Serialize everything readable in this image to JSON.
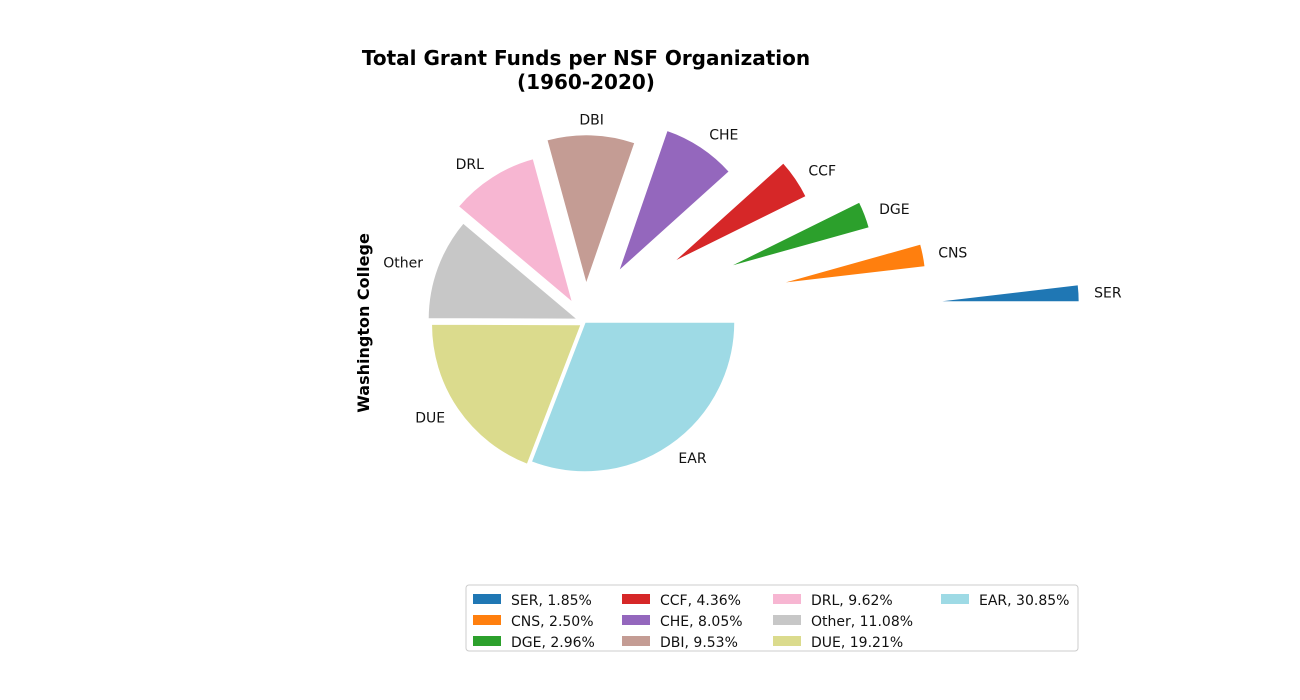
{
  "chart_data": {
    "type": "pie",
    "title": "Total Grant Funds per NSF Organization",
    "subtitle": "(1960-2020)",
    "ylabel": "Washington College",
    "slices": [
      {
        "label": "SER",
        "value": 1.85,
        "legend": "SER, 1.85%",
        "color": "#1f77b4",
        "explode": 2.3
      },
      {
        "label": "CNS",
        "value": 2.5,
        "legend": "CNS, 2.50%",
        "color": "#ff7f0e",
        "explode": 1.3
      },
      {
        "label": "DGE",
        "value": 2.96,
        "legend": "DGE, 2.96%",
        "color": "#2ca02c",
        "explode": 1.0
      },
      {
        "label": "CCF",
        "value": 4.36,
        "legend": "CCF, 4.36%",
        "color": "#d62728",
        "explode": 0.7
      },
      {
        "label": "CHE",
        "value": 8.05,
        "legend": "CHE, 8.05%",
        "color": "#9467bd",
        "explode": 0.4
      },
      {
        "label": "DBI",
        "value": 9.53,
        "legend": "DBI, 9.53%",
        "color": "#c49c94",
        "explode": 0.25
      },
      {
        "label": "DRL",
        "value": 9.62,
        "legend": "DRL, 9.62%",
        "color": "#f7b6d2",
        "explode": 0.15
      },
      {
        "label": "Other",
        "value": 11.08,
        "legend": "Other, 11.08%",
        "color": "#c7c7c7",
        "explode": 0.05
      },
      {
        "label": "DUE",
        "value": 19.21,
        "legend": "DUE, 19.21%",
        "color": "#dbdb8d",
        "explode": 0.03
      },
      {
        "label": "EAR",
        "value": 30.85,
        "legend": "EAR, 30.85%",
        "color": "#9edae5",
        "explode": 0.0
      }
    ],
    "start_angle_deg": 0,
    "direction": "counterclockwise",
    "legend_placement": "bottom",
    "legend_columns": 4
  }
}
